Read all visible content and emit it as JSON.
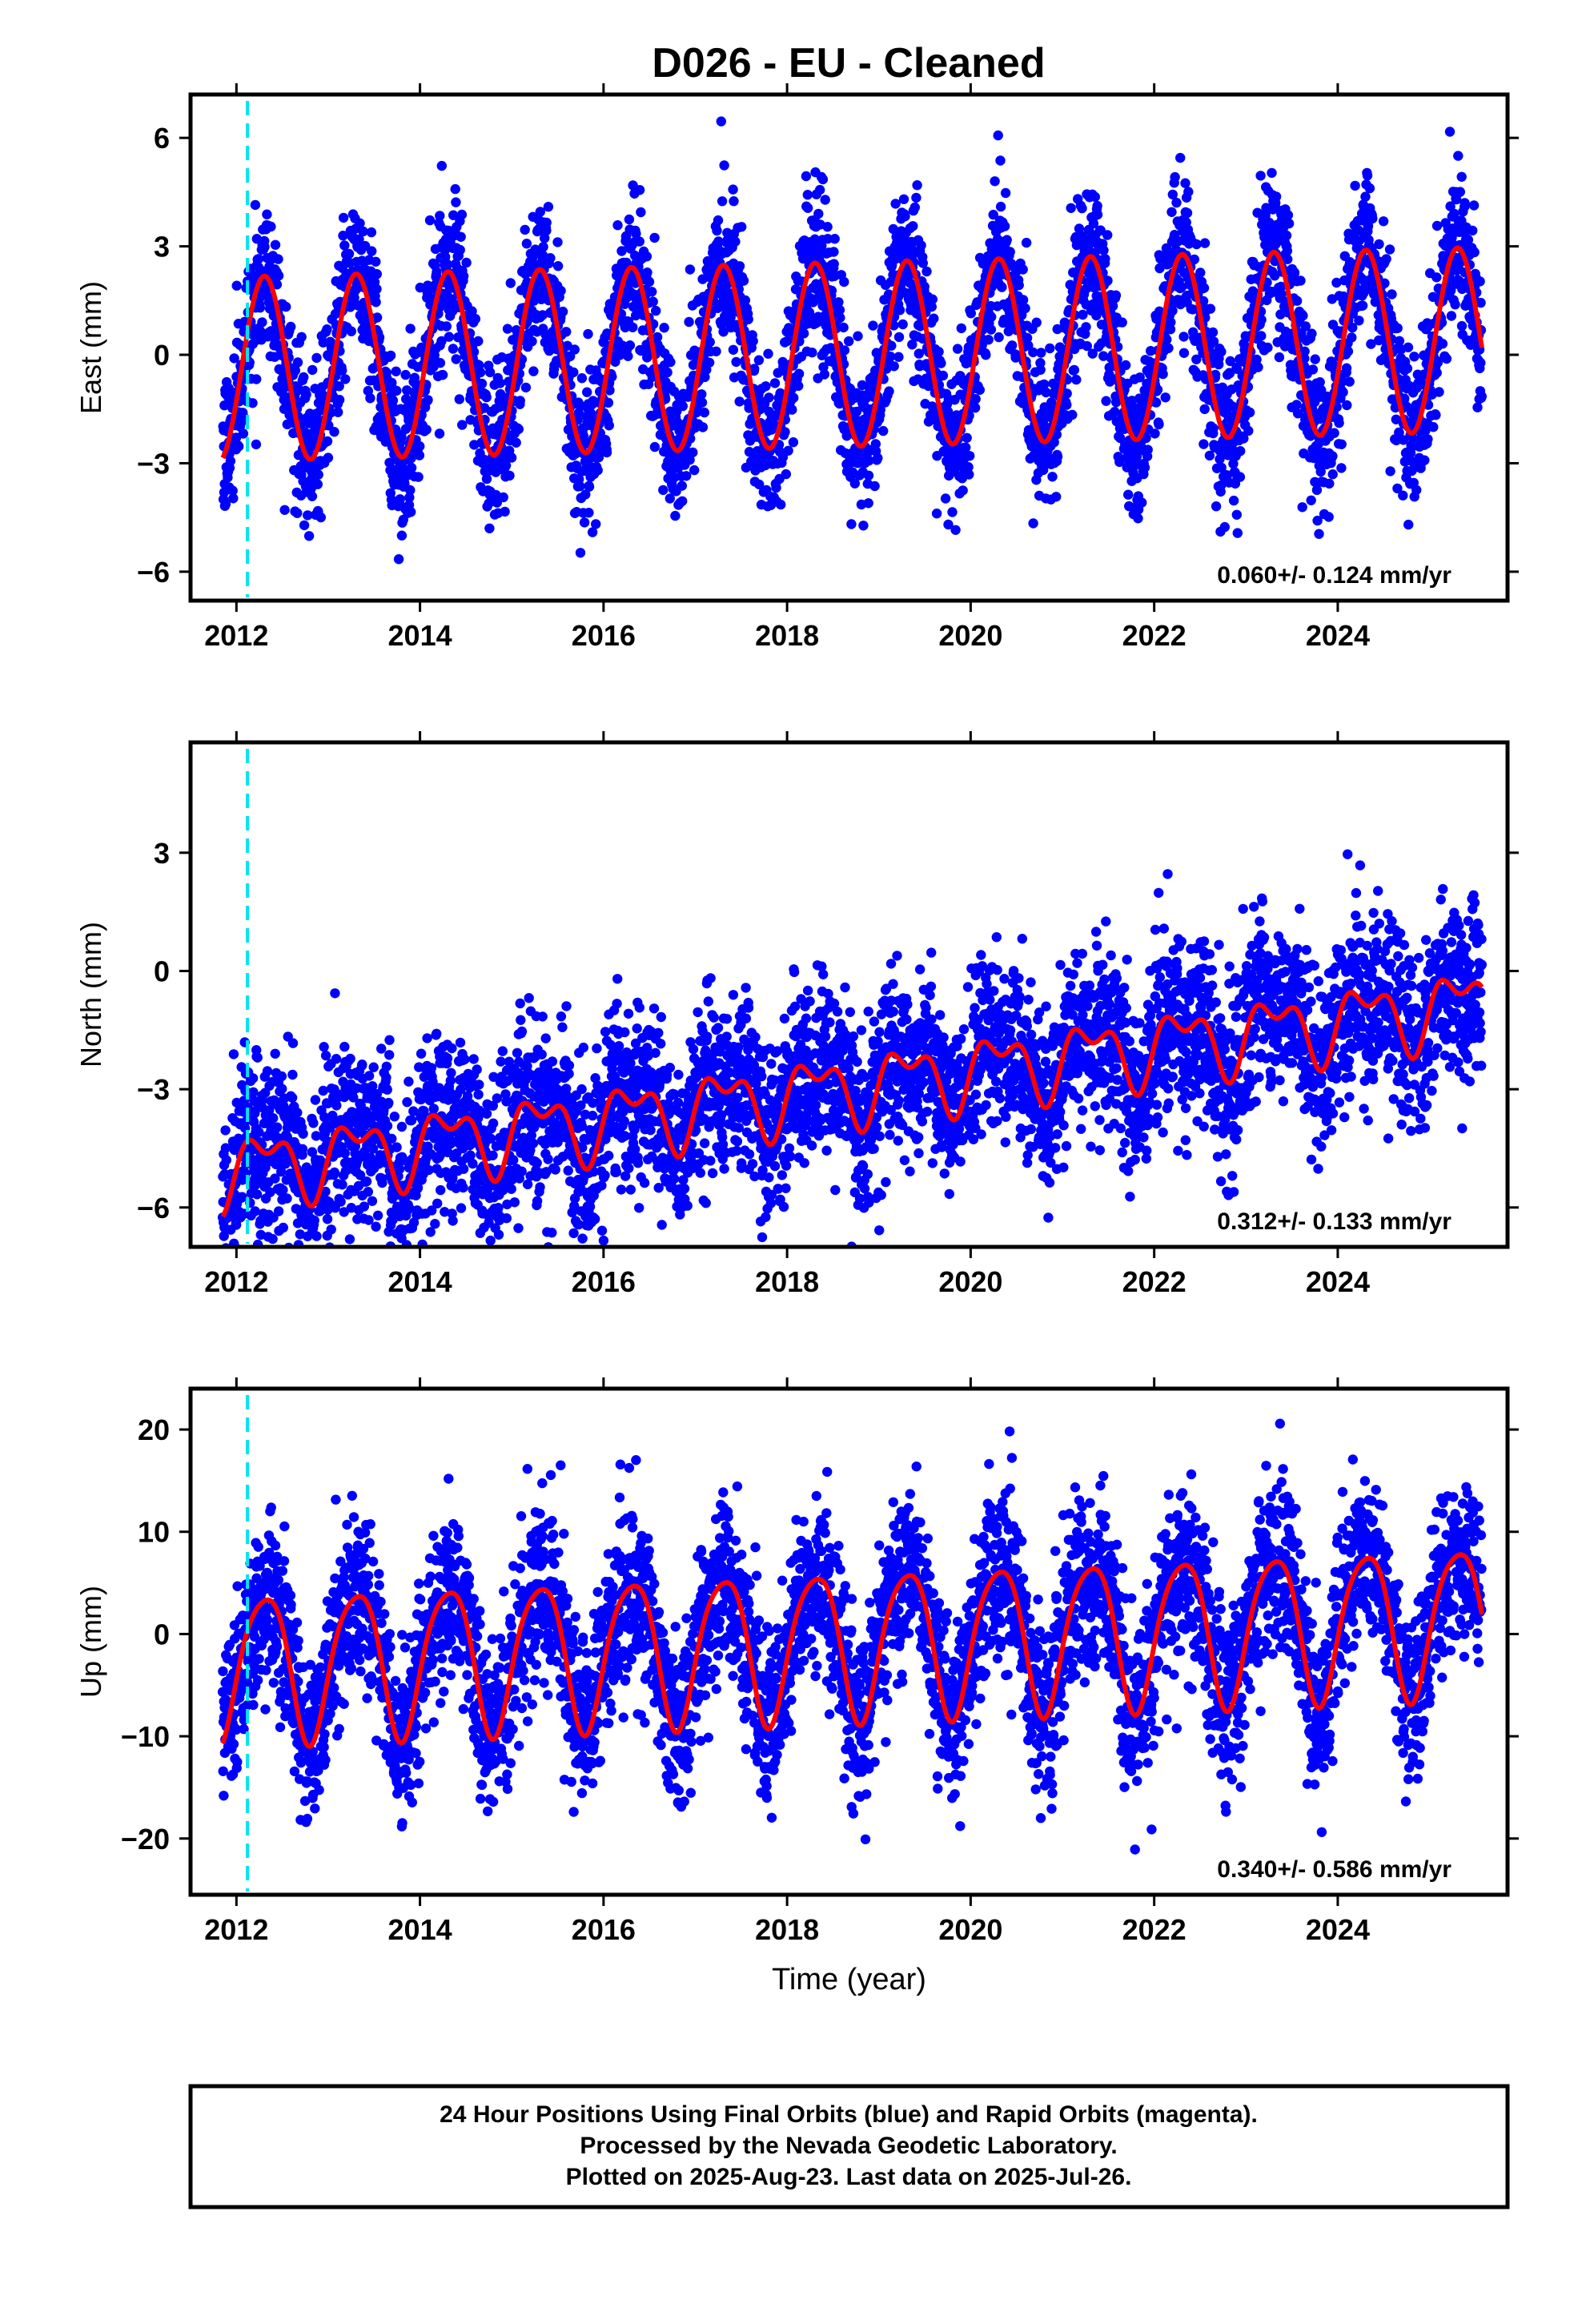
{
  "title": "D026  - EU - Cleaned",
  "chart_data": [
    {
      "type": "scatter",
      "panel": "east",
      "ylabel": "East (mm)",
      "xlabel": "",
      "xlim": [
        2011.5,
        2025.85
      ],
      "ylim": [
        -6.8,
        7.2
      ],
      "xticks": [
        2012,
        2014,
        2016,
        2018,
        2020,
        2022,
        2024
      ],
      "yticks": [
        -6,
        -3,
        0,
        3,
        6
      ],
      "ytick_labels": [
        "−6",
        "−3",
        "0",
        "3",
        "6"
      ],
      "rate_text": "0.060+/- 0.124 mm/yr",
      "event_line_x": 2012.12,
      "series": [
        {
          "role": "observations",
          "color": "#0000ff",
          "amplitude": 2.55,
          "trend": 0.06,
          "offset": 0.0,
          "noise": 1.05,
          "x_start": 2011.85,
          "x_end": 2025.57
        },
        {
          "role": "model",
          "color": "#ff0000",
          "amplitude": 2.55,
          "trend": 0.06,
          "offset": 0.0
        }
      ]
    },
    {
      "type": "scatter",
      "panel": "north",
      "ylabel": "North (mm)",
      "xlabel": "",
      "xlim": [
        2011.5,
        2025.85
      ],
      "ylim": [
        -7.0,
        5.8
      ],
      "xticks": [
        2012,
        2014,
        2016,
        2018,
        2020,
        2022,
        2024
      ],
      "yticks": [
        -6,
        -3,
        0,
        3
      ],
      "ytick_labels": [
        "−6",
        "−3",
        "0",
        "3"
      ],
      "rate_text": "0.312+/- 0.133 mm/yr",
      "event_line_x": 2012.12,
      "series": [
        {
          "role": "observations",
          "color": "#0000ff",
          "amplitude": 0.75,
          "trend": 0.312,
          "offset": -3.0,
          "noise": 1.1,
          "x_start": 2011.85,
          "x_end": 2025.57
        },
        {
          "role": "model",
          "color": "#ff0000",
          "amplitude": 0.75,
          "trend": 0.312,
          "offset": -3.0
        }
      ]
    },
    {
      "type": "scatter",
      "panel": "up",
      "ylabel": "Up (mm)",
      "xlabel": "Time (year)",
      "xlim": [
        2011.5,
        2025.85
      ],
      "ylim": [
        -25.5,
        24.0
      ],
      "xticks": [
        2012,
        2014,
        2016,
        2018,
        2020,
        2022,
        2024
      ],
      "yticks": [
        -20,
        -10,
        0,
        10,
        20
      ],
      "ytick_labels": [
        "−20",
        "−10",
        "0",
        "10",
        "20"
      ],
      "rate_text": "0.340+/- 0.586 mm/yr",
      "event_line_x": 2012.12,
      "series": [
        {
          "role": "observations",
          "color": "#0000ff",
          "amplitude": 7.2,
          "trend": 0.34,
          "offset": -0.8,
          "noise": 4.2,
          "x_start": 2011.85,
          "x_end": 2025.57
        },
        {
          "role": "model",
          "color": "#ff0000",
          "amplitude": 7.2,
          "trend": 0.34,
          "offset": -0.8
        }
      ]
    }
  ],
  "footer": {
    "line1": "24 Hour Positions Using Final Orbits (blue) and Rapid Orbits (magenta).",
    "line2": "Processed by the Nevada Geodetic Laboratory.",
    "line3": "Plotted on 2025-Aug-23. Last data on 2025-Jul-26."
  },
  "colors": {
    "observations": "#0000ff",
    "model": "#ff0000",
    "event_line": "#00e5ee",
    "frame": "#000000"
  }
}
